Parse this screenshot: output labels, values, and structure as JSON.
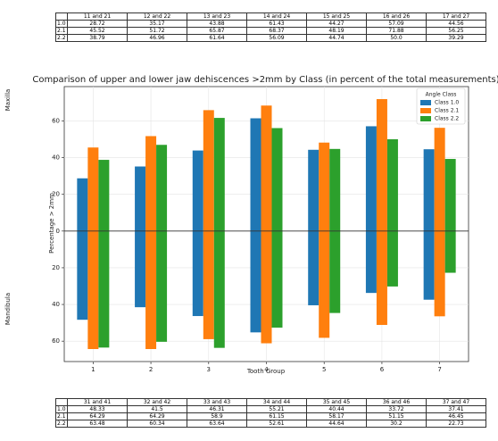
{
  "top_table": {
    "headers": [
      "11 and 21",
      "12 and 22",
      "13 and 23",
      "14 and 24",
      "15 and 25",
      "16 and 26",
      "17 and 27"
    ],
    "rows": [
      [
        "1.0",
        "28.72",
        "35.17",
        "43.88",
        "61.43",
        "44.27",
        "57.09",
        "44.56"
      ],
      [
        "2.1",
        "45.52",
        "51.72",
        "65.87",
        "68.37",
        "48.19",
        "71.88",
        "56.25"
      ],
      [
        "2.2",
        "38.79",
        "46.96",
        "61.64",
        "56.09",
        "44.74",
        "50.0",
        "39.29"
      ]
    ]
  },
  "bottom_table": {
    "headers": [
      "31 and 41",
      "32 and 42",
      "33 and 43",
      "34 and 44",
      "35 and 45",
      "36 and 46",
      "37 and 47"
    ],
    "rows": [
      [
        "1.0",
        "48.33",
        "41.5",
        "46.31",
        "55.21",
        "40.44",
        "33.72",
        "37.41"
      ],
      [
        "2.1",
        "64.29",
        "64.29",
        "58.9",
        "61.15",
        "58.17",
        "51.15",
        "46.45"
      ],
      [
        "2.2",
        "63.48",
        "60.34",
        "63.64",
        "52.61",
        "44.64",
        "30.2",
        "22.73"
      ]
    ]
  },
  "upper_label": "Maxilla",
  "lower_label": "Mandibula",
  "chart_data": {
    "type": "bar",
    "title": "Comparison of upper and lower jaw dehiscences >2mm by Class (in percent of the total measurements)",
    "x_label": "Tooth Group",
    "y_label": "Percentage > 2mm",
    "categories": [
      1,
      2,
      3,
      4,
      5,
      6,
      7
    ],
    "series": [
      {
        "name": "Class 1.0",
        "color": "#1f77b4",
        "values": [
          28.72,
          35.17,
          43.88,
          61.43,
          44.27,
          57.09,
          44.56
        ],
        "lower": [
          -48.33,
          -41.5,
          -46.31,
          -55.21,
          -40.44,
          -33.72,
          -37.41
        ]
      },
      {
        "name": "Class 2.1",
        "color": "#ff7f0e",
        "values": [
          45.52,
          51.72,
          65.87,
          68.37,
          48.19,
          71.88,
          56.25
        ],
        "lower": [
          -64.29,
          -64.29,
          -58.9,
          -61.15,
          -58.17,
          -51.15,
          -46.45
        ]
      },
      {
        "name": "Class 2.2",
        "color": "#2ca02c",
        "values": [
          38.79,
          46.96,
          61.64,
          56.09,
          44.74,
          50.0,
          39.29
        ],
        "lower": [
          -63.48,
          -60.34,
          -63.64,
          -52.61,
          -44.64,
          -30.2,
          -22.73
        ]
      }
    ],
    "ylim": [
      -71.1,
      78.7
    ],
    "yticks": [
      {
        "value": -60,
        "label": "60"
      },
      {
        "value": -40,
        "label": "40"
      },
      {
        "value": -20,
        "label": "20"
      },
      0,
      20,
      40,
      60
    ],
    "grid": true,
    "legend_title": "Angle Class",
    "legend": "upper right"
  }
}
